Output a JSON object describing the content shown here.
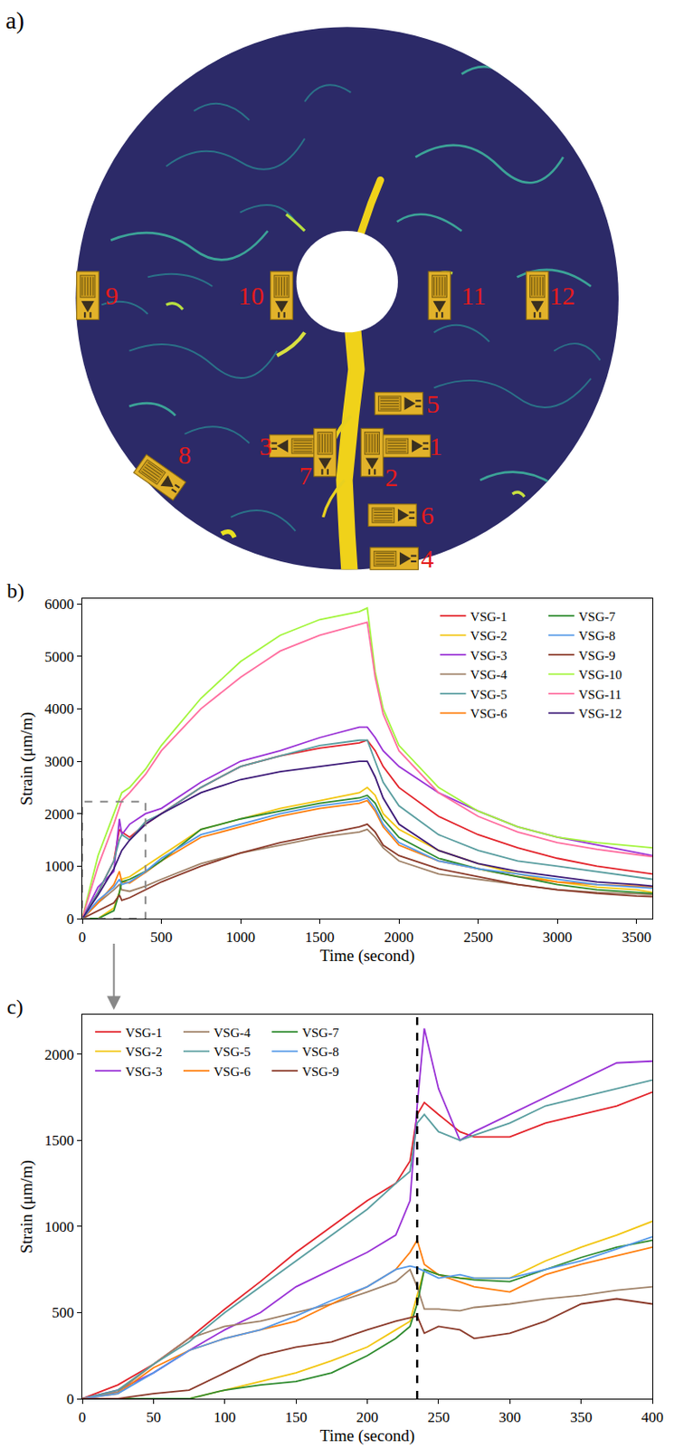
{
  "panel_a": {
    "label": "a)",
    "gauges": [
      "1",
      "2",
      "3",
      "4",
      "5",
      "6",
      "7",
      "8",
      "9",
      "10",
      "11",
      "12"
    ]
  },
  "chart_data": [
    {
      "type": "line",
      "panel": "b)",
      "x_label": "Time (second)",
      "y_label": "Strain (μm/m)",
      "x": [
        0,
        100,
        200,
        235,
        250,
        300,
        400,
        500,
        750,
        1000,
        1250,
        1500,
        1750,
        1800,
        1850,
        1900,
        2000,
        2250,
        2500,
        2750,
        3000,
        3250,
        3500,
        3600
      ],
      "xlim": [
        0,
        3600
      ],
      "xticks": [
        0,
        500,
        1000,
        1500,
        2000,
        2500,
        3000,
        3500
      ],
      "ylim": [
        0,
        6100
      ],
      "yticks": [
        0,
        1000,
        2000,
        3000,
        4000,
        5000,
        6000
      ],
      "grid": false,
      "legend": "top right",
      "zoom_box": {
        "x": [
          0,
          400
        ],
        "y": [
          0,
          2230
        ]
      },
      "series": [
        {
          "name": "VSG-1",
          "color": "#e3242b",
          "values": [
            0,
            500,
            1100,
            1700,
            1650,
            1550,
            1800,
            2000,
            2500,
            2900,
            3100,
            3250,
            3350,
            3400,
            3200,
            2900,
            2500,
            1950,
            1600,
            1350,
            1150,
            1000,
            900,
            850
          ]
        },
        {
          "name": "VSG-2",
          "color": "#f2c611",
          "values": [
            0,
            0,
            200,
            500,
            750,
            800,
            1000,
            1200,
            1700,
            1900,
            2100,
            2250,
            2400,
            2500,
            2350,
            2000,
            1700,
            1300,
            1050,
            850,
            700,
            600,
            550,
            500
          ]
        },
        {
          "name": "VSG-3",
          "color": "#9a32d6",
          "values": [
            0,
            600,
            900,
            1900,
            1600,
            1800,
            2000,
            2100,
            2600,
            3000,
            3200,
            3450,
            3650,
            3650,
            3450,
            3200,
            2900,
            2400,
            2050,
            1750,
            1550,
            1400,
            1250,
            1200
          ]
        },
        {
          "name": "VSG-4",
          "color": "#a08268",
          "values": [
            0,
            300,
            550,
            650,
            550,
            520,
            620,
            750,
            1050,
            1250,
            1400,
            1550,
            1650,
            1700,
            1550,
            1350,
            1100,
            850,
            750,
            650,
            550,
            500,
            470,
            460
          ]
        },
        {
          "name": "VSG-5",
          "color": "#5a9ea0",
          "values": [
            0,
            500,
            1100,
            1500,
            1600,
            1500,
            1850,
            2000,
            2500,
            2900,
            3100,
            3300,
            3400,
            3400,
            3000,
            2600,
            2150,
            1600,
            1300,
            1100,
            1000,
            900,
            800,
            750
          ]
        },
        {
          "name": "VSG-6",
          "color": "#ff7f0e",
          "values": [
            0,
            300,
            650,
            900,
            700,
            680,
            880,
            1100,
            1550,
            1750,
            1950,
            2100,
            2200,
            2250,
            2050,
            1750,
            1400,
            1100,
            950,
            800,
            700,
            650,
            620,
            600
          ]
        },
        {
          "name": "VSG-7",
          "color": "#2e8b2e",
          "values": [
            0,
            0,
            150,
            500,
            700,
            750,
            900,
            1100,
            1700,
            1900,
            2050,
            2200,
            2300,
            2350,
            2200,
            1900,
            1550,
            1150,
            950,
            800,
            650,
            550,
            500,
            480
          ]
        },
        {
          "name": "VSG-8",
          "color": "#5599e8",
          "values": [
            0,
            350,
            600,
            750,
            650,
            700,
            900,
            1150,
            1600,
            1800,
            2000,
            2150,
            2250,
            2300,
            2100,
            1800,
            1450,
            1100,
            950,
            850,
            750,
            650,
            600,
            580
          ]
        },
        {
          "name": "VSG-9",
          "color": "#8b3a2a",
          "values": [
            0,
            150,
            300,
            450,
            350,
            400,
            550,
            700,
            1000,
            1250,
            1450,
            1600,
            1750,
            1800,
            1650,
            1400,
            1200,
            950,
            800,
            650,
            550,
            480,
            430,
            420
          ]
        },
        {
          "name": "VSG-10",
          "color": "#a3f53c",
          "values": [
            0,
            1200,
            2000,
            2300,
            2400,
            2500,
            2850,
            3300,
            4200,
            4900,
            5400,
            5700,
            5850,
            5920,
            4700,
            4000,
            3300,
            2500,
            2050,
            1750,
            1550,
            1450,
            1380,
            1350
          ]
        },
        {
          "name": "VSG-11",
          "color": "#ff6fa0",
          "values": [
            0,
            1000,
            1800,
            2100,
            2250,
            2400,
            2750,
            3200,
            4000,
            4600,
            5100,
            5400,
            5600,
            5650,
            4600,
            3900,
            3200,
            2400,
            1950,
            1650,
            1450,
            1320,
            1220,
            1180
          ]
        },
        {
          "name": "VSG-12",
          "color": "#3d1a78",
          "values": [
            0,
            450,
            950,
            1200,
            1300,
            1500,
            1800,
            2000,
            2400,
            2650,
            2800,
            2900,
            3000,
            3000,
            2700,
            2300,
            1800,
            1300,
            1050,
            900,
            800,
            700,
            650,
            620
          ]
        }
      ]
    },
    {
      "type": "line",
      "panel": "c)",
      "x_label": "Time (second)",
      "y_label": "Strain (μm/m)",
      "x": [
        0,
        25,
        50,
        75,
        100,
        125,
        150,
        175,
        200,
        220,
        230,
        235,
        240,
        250,
        265,
        275,
        300,
        325,
        350,
        375,
        400
      ],
      "xlim": [
        0,
        400
      ],
      "xticks": [
        0,
        50,
        100,
        150,
        200,
        250,
        300,
        350,
        400
      ],
      "ylim": [
        0,
        2230
      ],
      "yticks": [
        0,
        500,
        1000,
        1500,
        2000
      ],
      "grid": false,
      "legend": "top left",
      "vline": 235,
      "series": [
        {
          "name": "VSG-1",
          "color": "#e3242b",
          "values": [
            0,
            80,
            200,
            350,
            520,
            680,
            850,
            1000,
            1150,
            1250,
            1380,
            1650,
            1720,
            1650,
            1550,
            1520,
            1520,
            1600,
            1650,
            1700,
            1780
          ]
        },
        {
          "name": "VSG-2",
          "color": "#f2c611",
          "values": [
            0,
            0,
            0,
            0,
            50,
            100,
            150,
            220,
            300,
            400,
            450,
            600,
            750,
            720,
            700,
            700,
            700,
            800,
            880,
            950,
            1030
          ]
        },
        {
          "name": "VSG-3",
          "color": "#9a32d6",
          "values": [
            0,
            50,
            150,
            280,
            400,
            500,
            650,
            750,
            850,
            950,
            1150,
            1700,
            2150,
            1800,
            1500,
            1550,
            1650,
            1750,
            1850,
            1950,
            1960
          ]
        },
        {
          "name": "VSG-4",
          "color": "#a08268",
          "values": [
            0,
            40,
            200,
            350,
            420,
            450,
            500,
            550,
            620,
            680,
            750,
            650,
            520,
            520,
            510,
            530,
            550,
            580,
            600,
            630,
            650
          ]
        },
        {
          "name": "VSG-5",
          "color": "#5a9ea0",
          "values": [
            0,
            50,
            200,
            330,
            500,
            650,
            800,
            950,
            1100,
            1250,
            1320,
            1600,
            1650,
            1550,
            1500,
            1530,
            1600,
            1700,
            1750,
            1800,
            1850
          ]
        },
        {
          "name": "VSG-6",
          "color": "#ff7f0e",
          "values": [
            0,
            30,
            180,
            280,
            350,
            400,
            450,
            550,
            650,
            750,
            850,
            920,
            780,
            720,
            680,
            650,
            620,
            720,
            780,
            830,
            880
          ]
        },
        {
          "name": "VSG-7",
          "color": "#2e8b2e",
          "values": [
            0,
            0,
            0,
            0,
            50,
            80,
            100,
            150,
            250,
            350,
            420,
            550,
            750,
            720,
            700,
            690,
            680,
            750,
            820,
            880,
            920
          ]
        },
        {
          "name": "VSG-8",
          "color": "#5599e8",
          "values": [
            0,
            30,
            150,
            280,
            350,
            400,
            480,
            570,
            650,
            750,
            770,
            760,
            740,
            700,
            720,
            700,
            700,
            750,
            800,
            870,
            940
          ]
        },
        {
          "name": "VSG-9",
          "color": "#8b3a2a",
          "values": [
            0,
            0,
            30,
            50,
            150,
            250,
            300,
            330,
            400,
            450,
            470,
            480,
            380,
            420,
            400,
            350,
            380,
            450,
            550,
            580,
            550
          ]
        }
      ]
    }
  ]
}
